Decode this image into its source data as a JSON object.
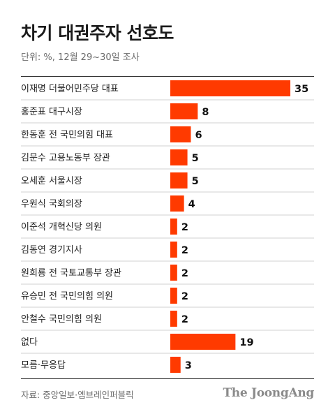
{
  "header": {
    "title": "차기 대권주자 선호도",
    "subtitle": "단위: %, 12월 29~30일 조사"
  },
  "footer": {
    "source": "자료: 중앙일보·엠브레인퍼블릭",
    "brand": "The JoongAng"
  },
  "colors": {
    "bar": "#ff3a00",
    "separator": "#d0d0d0",
    "text": "#222222"
  },
  "chart_data": {
    "type": "bar",
    "orientation": "horizontal",
    "title": "차기 대권주자 선호도",
    "subtitle": "단위: %, 12월 29~30일 조사",
    "unit": "%",
    "categories": [
      "이재명 더불어민주당 대표",
      "홍준표 대구시장",
      "한동훈 전 국민의힘 대표",
      "김문수 고용노동부 장관",
      "오세훈 서울시장",
      "우원식 국회의장",
      "이준석 개혁신당 의원",
      "김동연 경기지사",
      "원희룡 전 국토교통부 장관",
      "유승민 전 국민의힘 의원",
      "안철수 국민의힘 의원",
      "없다",
      "모름·무응답"
    ],
    "values": [
      35,
      8,
      6,
      5,
      5,
      4,
      2,
      2,
      2,
      2,
      2,
      19,
      3
    ],
    "xlim": [
      0,
      35
    ],
    "grid": false,
    "legend": "none"
  }
}
